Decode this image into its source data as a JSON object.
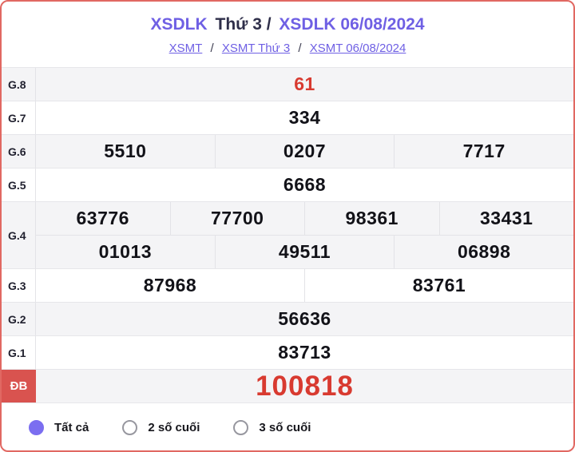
{
  "header": {
    "title": {
      "seg1": "XSDLK",
      "seg2": "Thứ 3 /",
      "seg3": "XSDLK 06/08/2024"
    },
    "breadcrumb": {
      "links": [
        "XSMT",
        "XSMT Thứ 3",
        "XSMT 06/08/2024"
      ],
      "separator": "/"
    }
  },
  "results": {
    "rows": [
      {
        "label": "G.8",
        "values": [
          "61"
        ],
        "highlight": true
      },
      {
        "label": "G.7",
        "values": [
          "334"
        ]
      },
      {
        "label": "G.6",
        "values": [
          "5510",
          "0207",
          "7717"
        ]
      },
      {
        "label": "G.5",
        "values": [
          "6668"
        ]
      },
      {
        "label": "G.4",
        "rows": [
          [
            "63776",
            "77700",
            "98361",
            "33431"
          ],
          [
            "01013",
            "49511",
            "06898"
          ]
        ]
      },
      {
        "label": "G.3",
        "values": [
          "87968",
          "83761"
        ]
      },
      {
        "label": "G.2",
        "values": [
          "56636"
        ]
      },
      {
        "label": "G.1",
        "values": [
          "83713"
        ]
      },
      {
        "label": "ĐB",
        "values": [
          "100818"
        ],
        "highlight": true
      }
    ]
  },
  "filters": {
    "options": [
      {
        "label": "Tất cả",
        "selected": true
      },
      {
        "label": "2 số cuối",
        "selected": false
      },
      {
        "label": "3 số cuối",
        "selected": false
      }
    ]
  },
  "colors": {
    "accent_purple": "#6f60e4",
    "highlight_red": "#d83a30",
    "special_prize_bg": "#d9534f",
    "card_border": "#e16862",
    "row_gray": "#f4f4f6"
  }
}
